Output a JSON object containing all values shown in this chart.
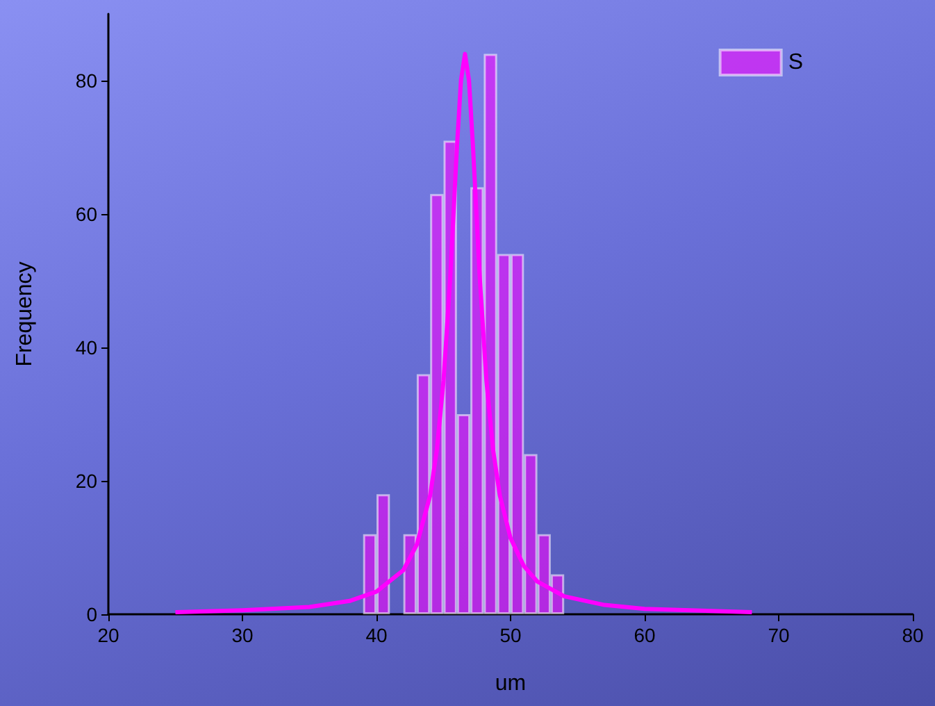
{
  "chart_data": {
    "type": "histogram",
    "xlabel": "um",
    "ylabel": "Frequency",
    "bins": [
      39,
      40,
      41,
      42,
      43,
      44,
      45,
      46,
      47,
      48,
      49,
      50,
      51,
      52,
      53,
      54
    ],
    "series": [
      {
        "name": "S",
        "color": "#ff00ff",
        "values": [
          12,
          18,
          0,
          12,
          36,
          63,
          71,
          30,
          64,
          84,
          54,
          54,
          24,
          12,
          6
        ]
      },
      {
        "type": "line",
        "color": "#ff00ff",
        "x": [
          25,
          30,
          35,
          38,
          40,
          42,
          43,
          44,
          44.5,
          45,
          45.5,
          46,
          46.3,
          46.6,
          46.9,
          47.2,
          47.7,
          48.2,
          48.7,
          49.2,
          50,
          51,
          52,
          54,
          57,
          60,
          65,
          68
        ],
        "values": [
          0.3,
          0.6,
          1.1,
          2,
          3.4,
          6.6,
          10.4,
          17.8,
          24.6,
          35,
          50.5,
          70,
          80,
          84,
          80,
          70,
          50.5,
          35,
          24.6,
          17.8,
          11.4,
          7.2,
          4.9,
          2.7,
          1.4,
          0.8,
          0.5,
          0.3
        ]
      }
    ],
    "xlim": [
      20,
      80
    ],
    "xticks": [
      20,
      30,
      40,
      50,
      60,
      70,
      80
    ],
    "ylim": [
      0,
      90
    ],
    "yticks": [
      0,
      20,
      40,
      60,
      80
    ],
    "grid": false,
    "legend": "top right",
    "marker": "none",
    "line_style": "solid"
  }
}
